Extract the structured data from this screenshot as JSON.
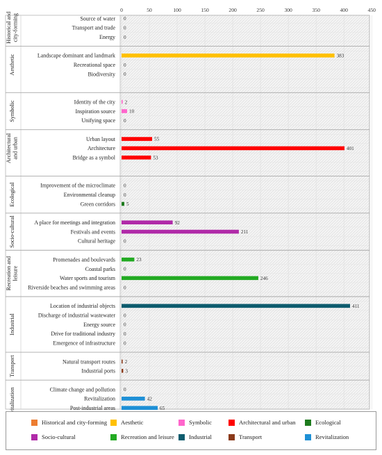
{
  "chart_data": {
    "type": "bar",
    "orientation": "horizontal",
    "title": "",
    "xlim": [
      0,
      450
    ],
    "xticks": [
      0,
      50,
      100,
      150,
      200,
      250,
      300,
      350,
      400,
      450
    ],
    "x_axis_position": "top",
    "grid": true,
    "legend_position": "bottom",
    "groups": [
      {
        "name": "Historical and city-forming",
        "color": "#ED7D31",
        "categories": [
          "Source of water",
          "Transport and trade",
          "Energy"
        ],
        "values": [
          0,
          0,
          0
        ]
      },
      {
        "name": "Aesthetic",
        "color": "#FFC000",
        "categories": [
          "Landscape dominant and landmark",
          "Recreational space",
          "Biodiversity"
        ],
        "values": [
          383,
          0,
          0
        ]
      },
      {
        "name": "Symbolic",
        "color": "#FF66CC",
        "categories": [
          "Identity of the city",
          "Inspiration source",
          "Unifying space"
        ],
        "values": [
          2,
          10,
          0
        ]
      },
      {
        "name": "Architectural and urban",
        "color": "#FF0000",
        "categories": [
          "Urban layout",
          "Architecture",
          "Bridge as a symbol"
        ],
        "values": [
          55,
          401,
          53
        ]
      },
      {
        "name": "Ecological",
        "color": "#1E7B1E",
        "categories": [
          "Improvement of the microclimate",
          "Environmental cleanup",
          "Green corridors"
        ],
        "values": [
          0,
          0,
          5
        ]
      },
      {
        "name": "Socio-cultural",
        "color": "#B02AA8",
        "categories": [
          "A place for meetings and integration",
          "Festivals and events",
          "Cultural heritage"
        ],
        "values": [
          92,
          211,
          0
        ]
      },
      {
        "name": "Recreation and leisure",
        "color": "#22AA22",
        "categories": [
          "Promenades and boulevards",
          "Coastal parks",
          "Water sports and tourism",
          "Riverside beaches and swimming areas"
        ],
        "values": [
          23,
          0,
          246,
          0
        ]
      },
      {
        "name": "Industrial",
        "color": "#0E5C6E",
        "categories": [
          "Location of industrial objects",
          "Discharge of industrial wastewater",
          "Energy source",
          "Drive for traditional industry",
          "Emergence of infrastructure"
        ],
        "values": [
          411,
          0,
          0,
          0,
          0
        ]
      },
      {
        "name": "Transport",
        "color": "#8B3A1A",
        "categories": [
          "Natural transport routes",
          "Industrial ports"
        ],
        "values": [
          2,
          3
        ]
      },
      {
        "name": "Revitalization",
        "color": "#1E90D6",
        "categories": [
          "Climate change and pollution",
          "Revitalization",
          "Post-industrial areas",
          "Sustainable development"
        ],
        "values": [
          0,
          42,
          65,
          0
        ]
      }
    ]
  },
  "group_axis_labels": [
    [
      "Historical and",
      "city-forming"
    ],
    [
      "Aesthetic"
    ],
    [
      "Symbolic"
    ],
    [
      "Architectural",
      "and urban"
    ],
    [
      "Ecological"
    ],
    [
      "Socio-cultural"
    ],
    [
      "Recreation and",
      "leisure"
    ],
    [
      "Industrial"
    ],
    [
      "Transport"
    ],
    [
      "Revitalization"
    ]
  ]
}
